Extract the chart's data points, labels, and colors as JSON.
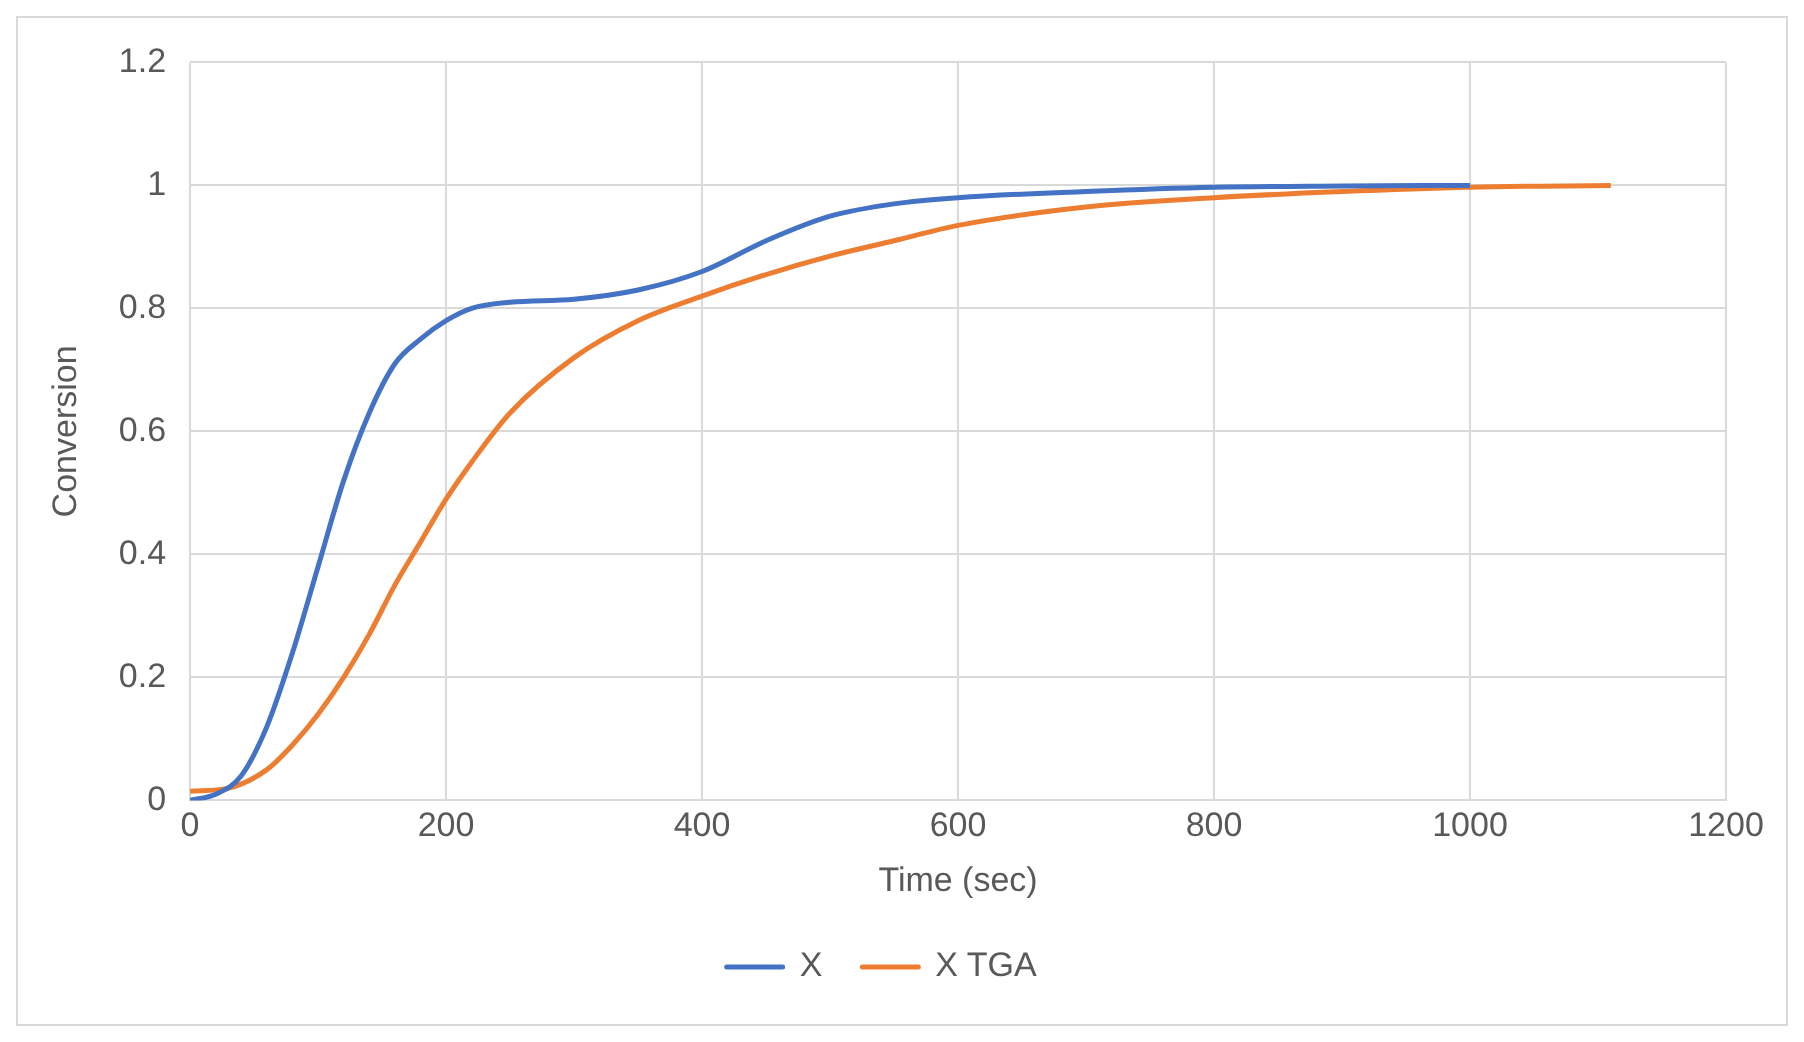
{
  "chart_data": {
    "type": "line",
    "xlabel": "Time (sec)",
    "ylabel": "Conversion",
    "xlim": [
      0,
      1200
    ],
    "xticks": [
      0,
      200,
      400,
      600,
      800,
      1000,
      1200
    ],
    "ylim": [
      0,
      1.2
    ],
    "yticks": [
      0,
      0.2,
      0.4,
      0.6,
      0.8,
      1,
      1.2
    ],
    "grid": true,
    "legend": "bottom",
    "marker": "none",
    "line_style": "solid",
    "series": [
      {
        "name": "X",
        "color": "#4472c4",
        "x": [
          0,
          20,
          40,
          60,
          80,
          100,
          120,
          140,
          160,
          180,
          200,
          220,
          250,
          300,
          350,
          400,
          450,
          500,
          550,
          600,
          700,
          800,
          900,
          1000
        ],
        "values": [
          0,
          0.01,
          0.04,
          0.12,
          0.24,
          0.38,
          0.52,
          0.63,
          0.71,
          0.75,
          0.78,
          0.8,
          0.81,
          0.815,
          0.83,
          0.86,
          0.91,
          0.95,
          0.97,
          0.98,
          0.99,
          0.997,
          0.999,
          1
        ]
      },
      {
        "name": "X TGA",
        "color": "#ed7d31",
        "x": [
          0,
          30,
          60,
          80,
          100,
          120,
          140,
          160,
          180,
          200,
          220,
          250,
          300,
          350,
          400,
          450,
          500,
          550,
          600,
          700,
          800,
          900,
          1000,
          1110
        ],
        "values": [
          0.015,
          0.02,
          0.05,
          0.09,
          0.14,
          0.2,
          0.27,
          0.35,
          0.42,
          0.49,
          0.55,
          0.63,
          0.72,
          0.78,
          0.82,
          0.855,
          0.885,
          0.91,
          0.935,
          0.965,
          0.98,
          0.99,
          0.997,
          1
        ]
      }
    ]
  }
}
